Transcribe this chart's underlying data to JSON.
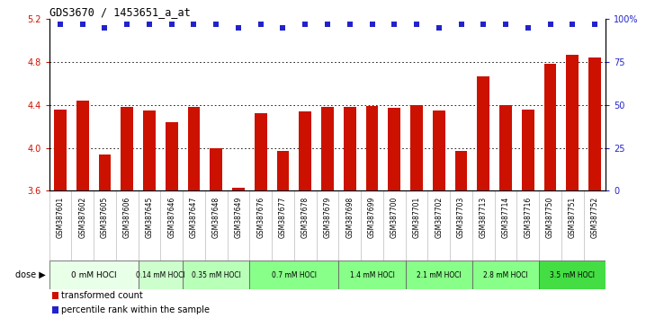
{
  "title": "GDS3670 / 1453651_a_at",
  "samples": [
    "GSM387601",
    "GSM387602",
    "GSM387605",
    "GSM387606",
    "GSM387645",
    "GSM387646",
    "GSM387647",
    "GSM387648",
    "GSM387649",
    "GSM387676",
    "GSM387677",
    "GSM387678",
    "GSM387679",
    "GSM387698",
    "GSM387699",
    "GSM387700",
    "GSM387701",
    "GSM387702",
    "GSM387703",
    "GSM387713",
    "GSM387714",
    "GSM387716",
    "GSM387750",
    "GSM387751",
    "GSM387752"
  ],
  "bar_values": [
    4.36,
    4.44,
    3.94,
    4.38,
    4.35,
    4.24,
    4.38,
    4.0,
    3.63,
    4.32,
    3.97,
    4.34,
    4.38,
    4.38,
    4.39,
    4.37,
    4.4,
    4.35,
    3.97,
    4.67,
    4.4,
    4.36,
    4.78,
    4.87,
    4.84
  ],
  "percentile_values": [
    97,
    97,
    95,
    97,
    97,
    97,
    97,
    97,
    95,
    97,
    95,
    97,
    97,
    97,
    97,
    97,
    97,
    95,
    97,
    97,
    97,
    95,
    97,
    97,
    97
  ],
  "dose_groups": [
    {
      "label": "0 mM HOCl",
      "start": 0,
      "end": 4,
      "color": "#e8ffe8"
    },
    {
      "label": "0.14 mM HOCl",
      "start": 4,
      "end": 6,
      "color": "#ccffcc"
    },
    {
      "label": "0.35 mM HOCl",
      "start": 6,
      "end": 9,
      "color": "#b8ffb8"
    },
    {
      "label": "0.7 mM HOCl",
      "start": 9,
      "end": 13,
      "color": "#88ff88"
    },
    {
      "label": "1.4 mM HOCl",
      "start": 13,
      "end": 16,
      "color": "#88ff88"
    },
    {
      "label": "2.1 mM HOCl",
      "start": 16,
      "end": 19,
      "color": "#88ff88"
    },
    {
      "label": "2.8 mM HOCl",
      "start": 19,
      "end": 22,
      "color": "#88ff88"
    },
    {
      "label": "3.5 mM HOCl",
      "start": 22,
      "end": 25,
      "color": "#44dd44"
    }
  ],
  "ylim": [
    3.6,
    5.2
  ],
  "yticks": [
    3.6,
    4.0,
    4.4,
    4.8,
    5.2
  ],
  "bar_color": "#cc1100",
  "dot_color": "#2222cc",
  "bg_color": "#ffffff",
  "right_axis_ticks": [
    0,
    25,
    50,
    75,
    100
  ],
  "right_axis_labels": [
    "0",
    "25",
    "50",
    "75",
    "100%"
  ],
  "percentile_axis_min": 0,
  "percentile_axis_max": 100,
  "legend_items": [
    {
      "color": "#cc1100",
      "label": "transformed count"
    },
    {
      "color": "#2222cc",
      "label": "percentile rank within the sample"
    }
  ]
}
